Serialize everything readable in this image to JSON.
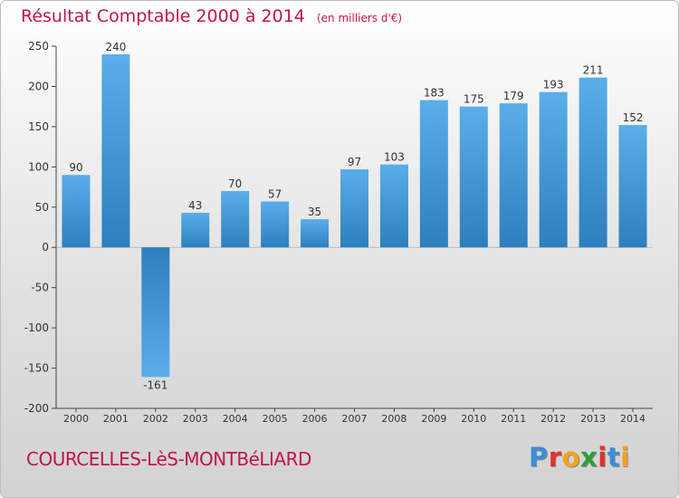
{
  "header": {
    "title": "Résultat Comptable 2000 à 2014",
    "unit": "(en milliers d'€)"
  },
  "footer": {
    "place": "COURCELLES-LèS-MONTBéLIARD",
    "logo": [
      "P",
      "r",
      "o",
      "x",
      "i",
      "t",
      "i"
    ]
  },
  "colors": {
    "bar_light": "#5aaeea",
    "bar_dark": "#2d7fbd",
    "title": "#c0134f"
  },
  "chart_data": {
    "type": "bar",
    "title": "Résultat Comptable 2000 à 2014",
    "categories": [
      "2000",
      "2001",
      "2002",
      "2003",
      "2004",
      "2005",
      "2006",
      "2007",
      "2008",
      "2009",
      "2010",
      "2011",
      "2012",
      "2013",
      "2014"
    ],
    "values": [
      90,
      240,
      -161,
      43,
      70,
      57,
      35,
      97,
      103,
      183,
      175,
      179,
      193,
      211,
      152
    ],
    "value_labels": [
      "90",
      "240",
      "-161",
      "43",
      "70",
      "57",
      "35",
      "97",
      "103",
      "183",
      "175",
      "179",
      "193",
      "211",
      "152"
    ],
    "yticks": [
      250,
      200,
      150,
      100,
      50,
      0,
      -50,
      -100,
      -150,
      -200
    ],
    "ytick_labels": [
      "250",
      "200",
      "150",
      "100",
      "50",
      "0",
      "-50",
      "-100",
      "-150",
      "-200"
    ],
    "ylim": [
      -200,
      250
    ],
    "grid": false,
    "legend": "none"
  }
}
